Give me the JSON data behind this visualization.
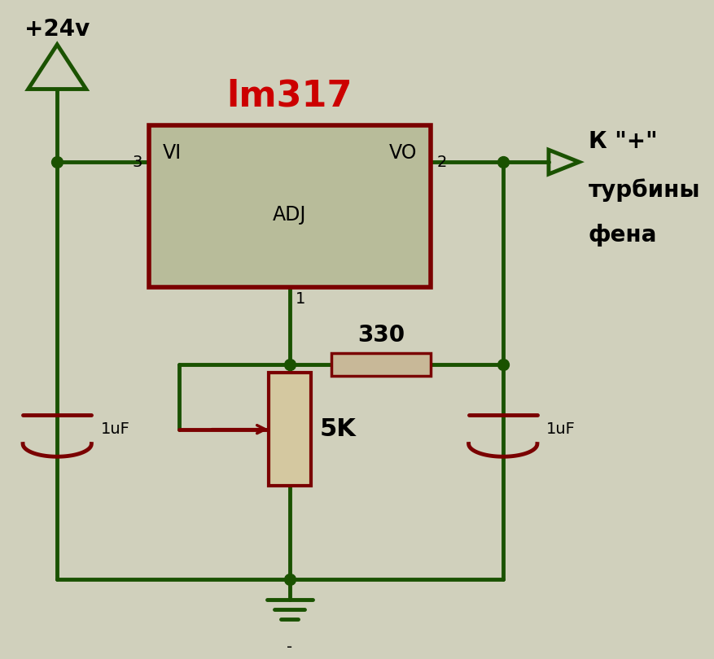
{
  "bg_color": "#d0d0bc",
  "dark_green": "#1a5200",
  "dark_red": "#7a0000",
  "lm317_color": "#b8bc9a",
  "lm317_border": "#7a0000",
  "line_width": 3.5,
  "title": "lm317",
  "title_color": "#cc0000",
  "label_24v": "+24v",
  "label_1uF_left": "1uF",
  "label_1uF_right": "1uF",
  "label_330": "330",
  "label_5K": "5K",
  "label_K": "К \"+\"",
  "label_turbiny": "турбины",
  "label_fena": "фена",
  "label_VI": "VI",
  "label_VO": "VO",
  "label_ADJ": "ADJ",
  "label_pin1": "1",
  "label_pin2": "2",
  "label_pin3": "3"
}
